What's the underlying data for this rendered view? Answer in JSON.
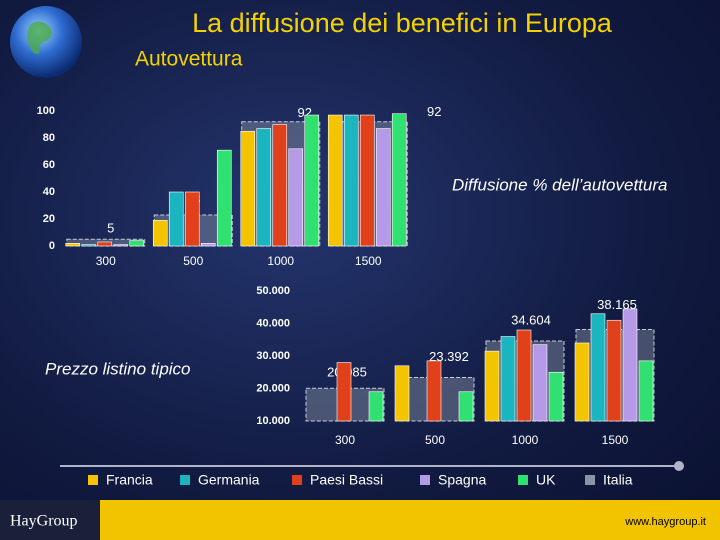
{
  "chart_data": [
    {
      "type": "bar",
      "title": "La diffusione dei benefici in Europa",
      "subtitle": "Autovettura",
      "annotation": "Diffusione % dell’autovettura",
      "categories": [
        "300",
        "500",
        "1000",
        "1500"
      ],
      "ylim": [
        0,
        100
      ],
      "yticks": [
        0,
        20,
        40,
        60,
        80,
        100
      ],
      "series": [
        {
          "name": "Francia",
          "color": "#f5c400",
          "values": [
            2,
            19,
            85,
            97
          ]
        },
        {
          "name": "Germania",
          "color": "#1bb5c0",
          "values": [
            1,
            40,
            87,
            97
          ]
        },
        {
          "name": "Paesi Bassi",
          "color": "#e0401a",
          "values": [
            3,
            40,
            90,
            97
          ]
        },
        {
          "name": "Spagna",
          "color": "#b59ae8",
          "values": [
            1,
            2,
            72,
            87
          ]
        },
        {
          "name": "UK",
          "color": "#30e070",
          "values": [
            4,
            71,
            97,
            98
          ]
        },
        {
          "name": "Italia",
          "color": "#8a94a6",
          "values": [
            5,
            23,
            92,
            92
          ]
        }
      ]
    },
    {
      "type": "bar",
      "annotation": "Prezzo listino tipico",
      "categories": [
        "300",
        "500",
        "1000",
        "1500"
      ],
      "ylim": [
        10000,
        50000
      ],
      "yticks": [
        {
          "value": 10000,
          "label": "10.000"
        },
        {
          "value": 20000,
          "label": "20.000"
        },
        {
          "value": 30000,
          "label": "30.000"
        },
        {
          "value": 40000,
          "label": "40.000"
        },
        {
          "value": 50000,
          "label": "50.000"
        }
      ],
      "series": [
        {
          "color": "#f5c400",
          "values": [
            null,
            27000,
            31500,
            34000
          ]
        },
        {
          "color": "#1bb5c0",
          "values": [
            null,
            null,
            36000,
            43000
          ]
        },
        {
          "color": "#e0401a",
          "values": [
            28000,
            28500,
            38000,
            41000
          ]
        },
        {
          "color": "#b59ae8",
          "values": [
            null,
            null,
            33500,
            44500
          ]
        },
        {
          "color": "#30e070",
          "values": [
            19000,
            19000,
            25000,
            28500
          ]
        },
        {
          "color": "#8a94a6",
          "values": [
            20085,
            23392,
            34604,
            38165
          ],
          "value_labels": [
            "20.085",
            "23.392",
            "34.604",
            "38.165"
          ]
        }
      ]
    }
  ],
  "footer": {
    "logo": "HayGroup",
    "url": "www.haygroup.it"
  }
}
